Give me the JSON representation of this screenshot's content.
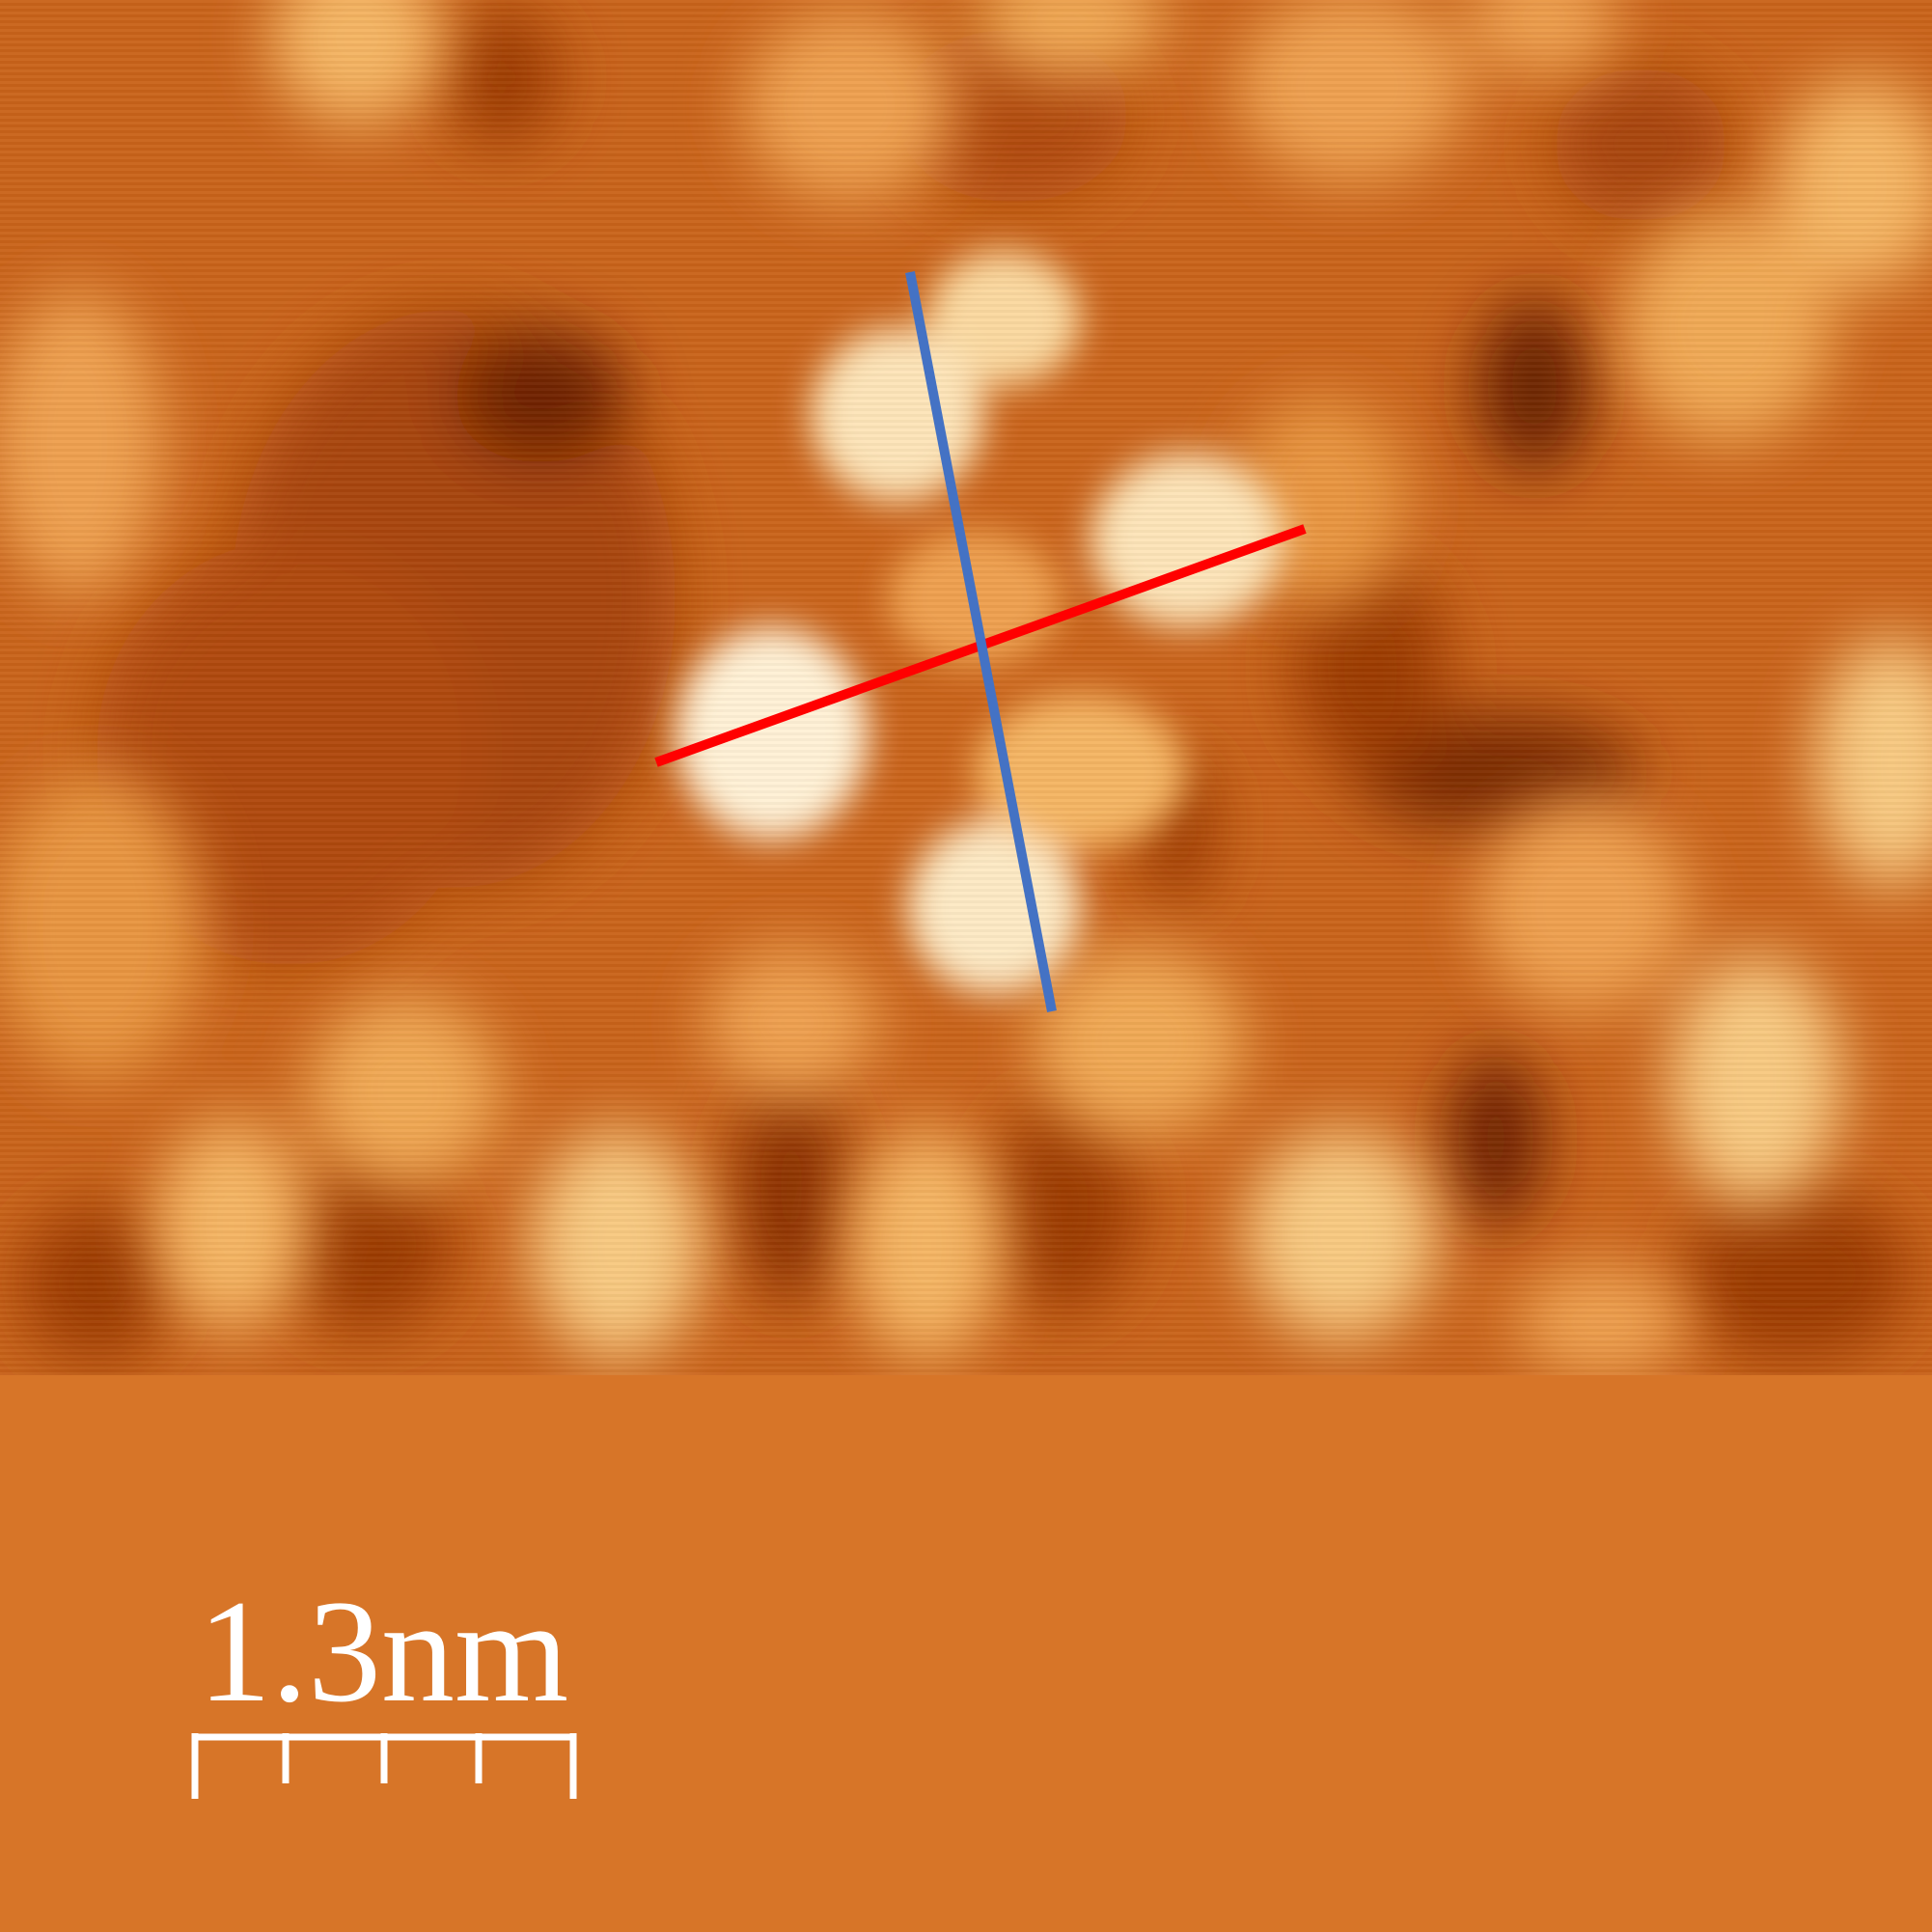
{
  "image": {
    "kind": "scanning tunneling microscopy topograph",
    "colormap": [
      "#7a2a00",
      "#b84e08",
      "#d77528",
      "#f0a955",
      "#fde9c4"
    ],
    "footer_color": "#d77528"
  },
  "markers": [
    {
      "name": "red-profile-line",
      "color": "#ff0000"
    },
    {
      "name": "blue-profile-line",
      "color": "#4472c4"
    }
  ],
  "scale_bar": {
    "label": "1.3nm",
    "color": "#ffffff",
    "minor_ticks": 3
  }
}
